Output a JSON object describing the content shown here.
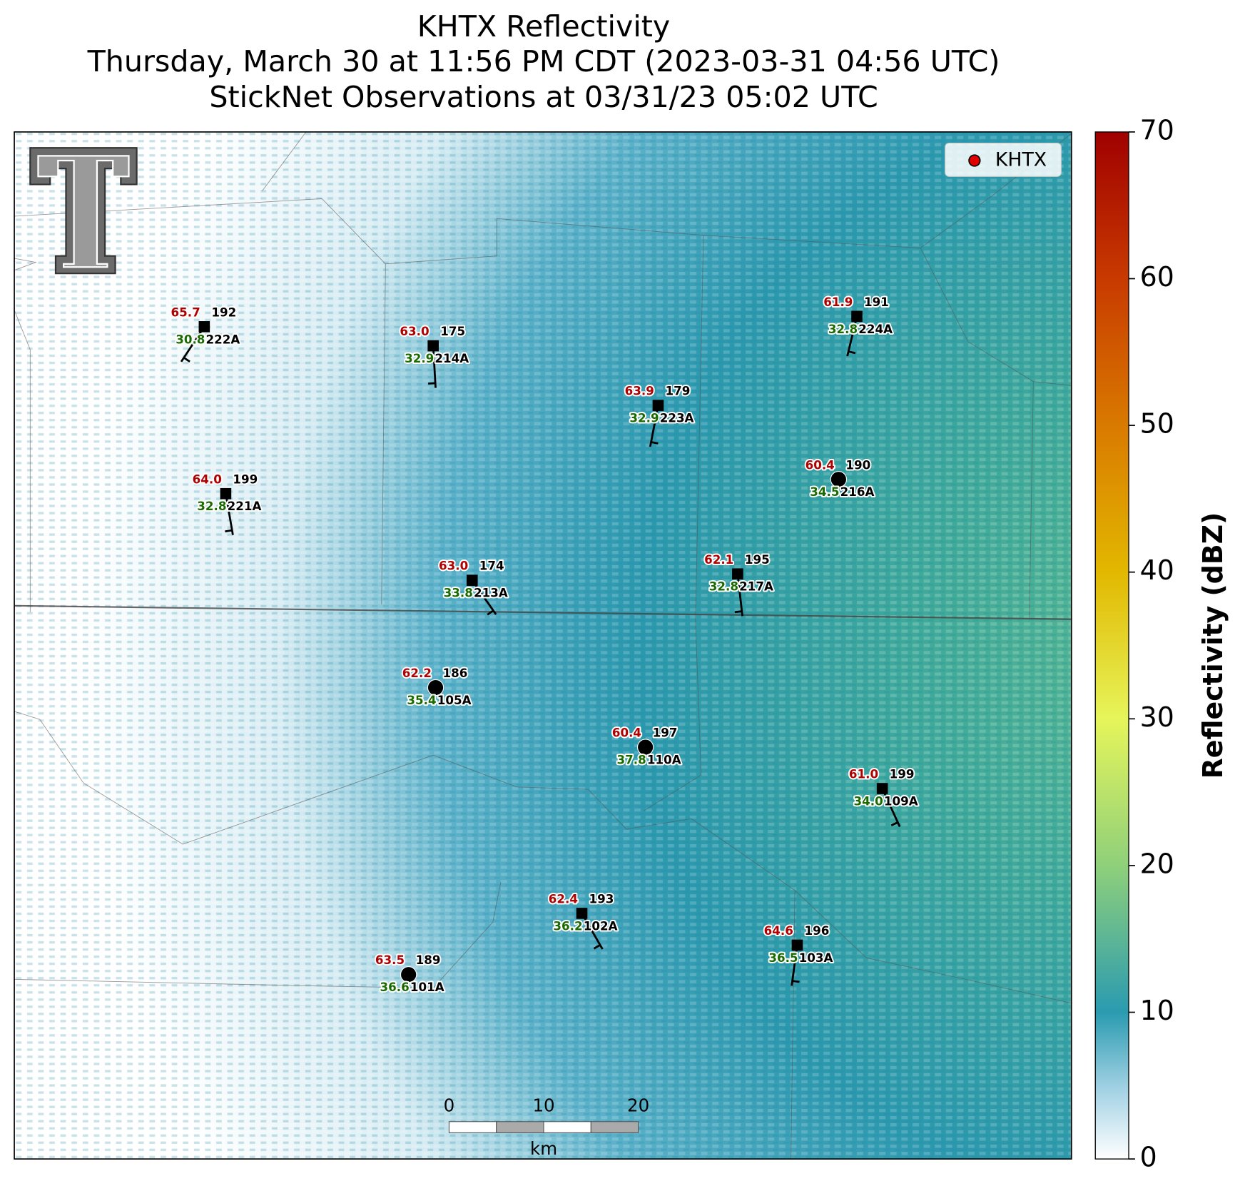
{
  "title": [
    "KHTX Reflectivity",
    "Thursday, March 30 at 11:56 PM CDT (2023-03-31 04:56 UTC)",
    "StickNet Observations at 03/31/23 05:02 UTC"
  ],
  "legend": {
    "label": "KHTX",
    "color": "#e00000"
  },
  "colorbar": {
    "label": "Reflectivity (dBZ)",
    "lim": [
      0,
      70
    ],
    "ticks": [
      0,
      10,
      20,
      30,
      40,
      50,
      60,
      70
    ]
  },
  "scale_bar": {
    "ticks": [
      0,
      10,
      20
    ],
    "unit": "km"
  },
  "stations": [
    {
      "id": "222A",
      "temperature": "65.7",
      "dewpoint": "30.8",
      "wind_direction": "192",
      "marker": "square"
    },
    {
      "id": "214A",
      "temperature": "63.0",
      "dewpoint": "32.9",
      "wind_direction": "175",
      "marker": "square"
    },
    {
      "id": "223A",
      "temperature": "63.9",
      "dewpoint": "32.9",
      "wind_direction": "179",
      "marker": "square"
    },
    {
      "id": "224A",
      "temperature": "61.9",
      "dewpoint": "32.8",
      "wind_direction": "191",
      "marker": "square"
    },
    {
      "id": "221A",
      "temperature": "64.0",
      "dewpoint": "32.8",
      "wind_direction": "199",
      "marker": "square"
    },
    {
      "id": "216A",
      "temperature": "60.4",
      "dewpoint": "34.5",
      "wind_direction": "190",
      "marker": "circle"
    },
    {
      "id": "213A",
      "temperature": "63.0",
      "dewpoint": "33.8",
      "wind_direction": "174",
      "marker": "square"
    },
    {
      "id": "217A",
      "temperature": "62.1",
      "dewpoint": "32.8",
      "wind_direction": "195",
      "marker": "square"
    },
    {
      "id": "105A",
      "temperature": "62.2",
      "dewpoint": "35.4",
      "wind_direction": "186",
      "marker": "circle"
    },
    {
      "id": "110A",
      "temperature": "60.4",
      "dewpoint": "37.8",
      "wind_direction": "197",
      "marker": "circle"
    },
    {
      "id": "109A",
      "temperature": "61.0",
      "dewpoint": "34.0",
      "wind_direction": "199",
      "marker": "square"
    },
    {
      "id": "102A",
      "temperature": "62.4",
      "dewpoint": "36.2",
      "wind_direction": "193",
      "marker": "square"
    },
    {
      "id": "103A",
      "temperature": "64.6",
      "dewpoint": "36.5",
      "wind_direction": "196",
      "marker": "square"
    },
    {
      "id": "101A",
      "temperature": "63.5",
      "dewpoint": "36.6",
      "wind_direction": "189",
      "marker": "circle"
    }
  ]
}
